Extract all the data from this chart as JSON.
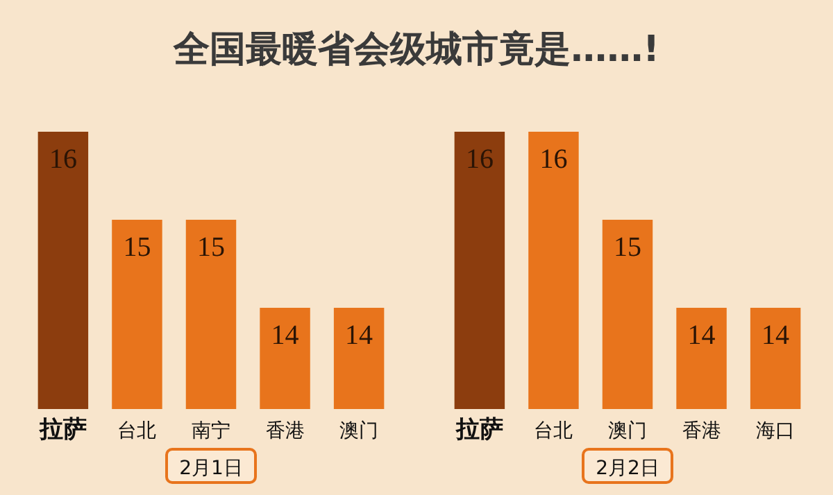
{
  "chart_data": [
    {
      "type": "bar",
      "title": "全国最暖省会级城市竟是……!",
      "xlabel": "2月1日",
      "categories": [
        "拉萨",
        "台北",
        "南宁",
        "香港",
        "澳门"
      ],
      "values": [
        16,
        15,
        15,
        14,
        14
      ],
      "colors": [
        "#8c3d0e",
        "#e8741c",
        "#e8741c",
        "#e8741c",
        "#e8741c"
      ],
      "ylim": [
        12.85,
        16
      ],
      "data_labels": true,
      "tick_labels": "x"
    },
    {
      "type": "bar",
      "xlabel": "2月2日",
      "categories": [
        "拉萨",
        "台北",
        "澳门",
        "香港",
        "海口"
      ],
      "values": [
        16,
        16,
        15,
        14,
        14
      ],
      "colors": [
        "#8c3d0e",
        "#e8741c",
        "#e8741c",
        "#e8741c",
        "#e8741c"
      ],
      "ylim": [
        12.85,
        16
      ],
      "data_labels": true,
      "tick_labels": "x"
    }
  ]
}
